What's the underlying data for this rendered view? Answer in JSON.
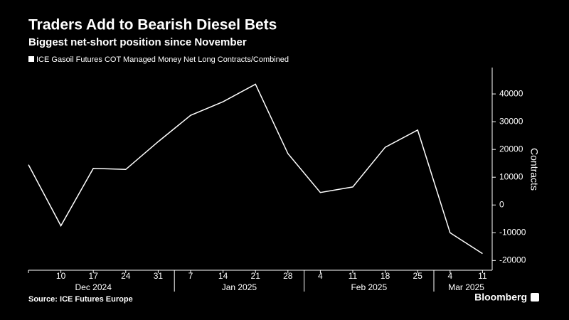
{
  "chart_data": {
    "type": "line",
    "title": "Traders Add to Bearish Diesel Bets",
    "subtitle": "Biggest net-short position since November",
    "categories": [
      null,
      "10",
      "17",
      "24",
      "31",
      "7",
      "14",
      "21",
      "28",
      "4",
      "11",
      "18",
      "25",
      "4",
      "11"
    ],
    "month_groups": [
      {
        "label": "Dec 2024",
        "count": 5
      },
      {
        "label": "Jan 2025",
        "count": 4
      },
      {
        "label": "Feb 2025",
        "count": 4
      },
      {
        "label": "Mar 2025",
        "count": 2
      }
    ],
    "series": [
      {
        "name": "ICE Gasoil Futures COT Managed Money Net Long Contracts/Combined",
        "color": "#ffffff",
        "values": [
          14500,
          -7500,
          13200,
          12800,
          22800,
          32300,
          37200,
          43500,
          18500,
          4500,
          6500,
          20800,
          27000,
          -10000,
          -17500
        ]
      }
    ],
    "y_label": "Contracts",
    "ylim": [
      -23500,
      49500
    ],
    "yticks": [
      -20000,
      -10000,
      0,
      10000,
      20000,
      30000,
      40000
    ],
    "source": "Source: ICE Futures Europe",
    "brand": "Bloomberg"
  }
}
